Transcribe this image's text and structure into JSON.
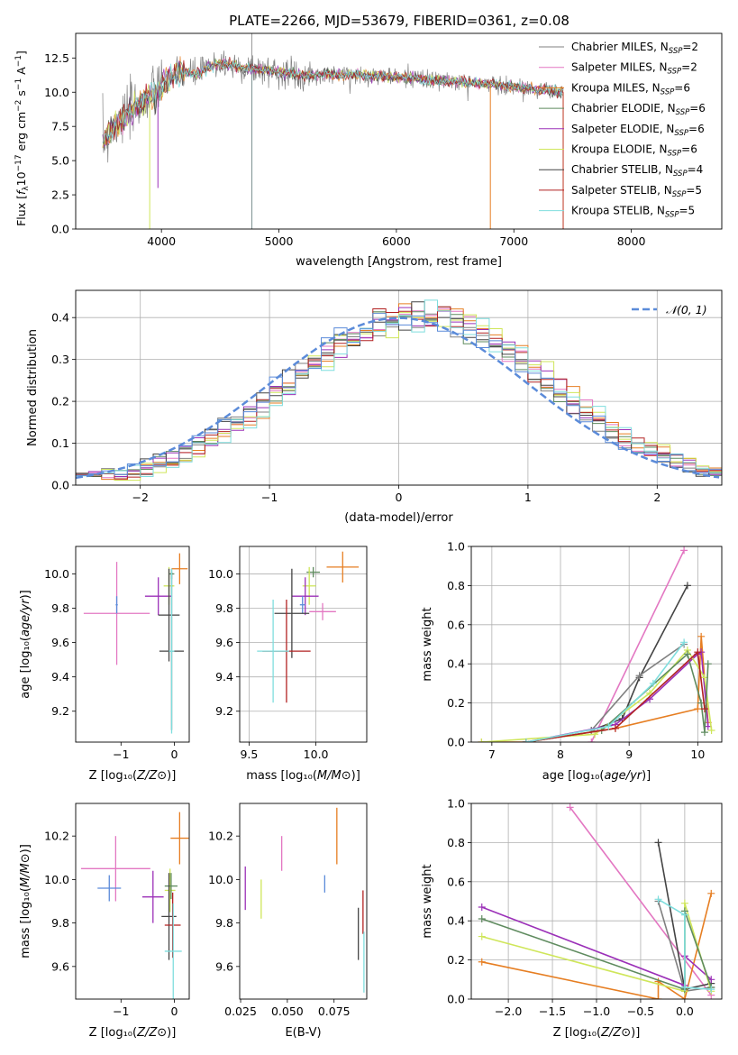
{
  "figure_title": "PLATE=2266, MJD=53679, FIBERID=0361, z=0.08",
  "palette": {
    "c1": "#808080",
    "c2": "#e377c2",
    "c3": "#e67e22",
    "c4": "#5f8b5f",
    "c5": "#9b30b8",
    "c6": "#cfe65a",
    "c7": "#444444",
    "c8": "#b22222",
    "c9": "#7fdede",
    "c10": "#5b8bd9"
  },
  "chart_data": [
    {
      "id": "spectrum",
      "type": "line",
      "title": "PLATE=2266, MJD=53679, FIBERID=0361, z=0.08",
      "xlabel": "wavelength [Angstrom, rest frame]",
      "ylabel": "Flux [fλ 10⁻¹⁷ erg cm⁻² s⁻¹ A⁻¹]",
      "xlim": [
        3270,
        8770
      ],
      "ylim": [
        0,
        14.3
      ],
      "xticks": [
        4000,
        5000,
        6000,
        7000,
        8000
      ],
      "yticks": [
        0.0,
        2.5,
        5.0,
        7.5,
        10.0,
        12.5
      ],
      "legend_position": "right",
      "legend": [
        {
          "main": "Chabrier MILES, N",
          "sub": "SSP",
          "tail": "=2",
          "color": "#808080"
        },
        {
          "main": "Salpeter MILES, N",
          "sub": "SSP",
          "tail": "=2",
          "color": "#e377c2"
        },
        {
          "main": "Kroupa MILES, N",
          "sub": "SSP",
          "tail": "=6",
          "color": "#e67e22"
        },
        {
          "main": "Chabrier ELODIE, N",
          "sub": "SSP",
          "tail": "=6",
          "color": "#5f8b5f"
        },
        {
          "main": "Salpeter ELODIE, N",
          "sub": "SSP",
          "tail": "=6",
          "color": "#9b30b8"
        },
        {
          "main": "Kroupa ELODIE, N",
          "sub": "SSP",
          "tail": "=6",
          "color": "#cfe65a"
        },
        {
          "main": "Chabrier STELIB, N",
          "sub": "SSP",
          "tail": "=4",
          "color": "#444444"
        },
        {
          "main": "Salpeter STELIB, N",
          "sub": "SSP",
          "tail": "=5",
          "color": "#b22222"
        },
        {
          "main": "Kroupa STELIB, N",
          "sub": "SSP",
          "tail": "=5",
          "color": "#7fdede"
        }
      ],
      "continuum": [
        [
          3500,
          6.2
        ],
        [
          3600,
          7.6
        ],
        [
          3700,
          8.3
        ],
        [
          3800,
          9.0
        ],
        [
          3900,
          9.7
        ],
        [
          3950,
          9.9
        ],
        [
          4000,
          10.6
        ],
        [
          4100,
          11.2
        ],
        [
          4200,
          11.5
        ],
        [
          4300,
          11.3
        ],
        [
          4400,
          11.8
        ],
        [
          4500,
          12.1
        ],
        [
          4700,
          11.8
        ],
        [
          4900,
          11.6
        ],
        [
          5000,
          11.5
        ],
        [
          5200,
          11.2
        ],
        [
          5400,
          11.3
        ],
        [
          5600,
          11.3
        ],
        [
          5800,
          11.2
        ],
        [
          6000,
          11.1
        ],
        [
          6200,
          11.0
        ],
        [
          6400,
          10.8
        ],
        [
          6600,
          10.7
        ],
        [
          6800,
          10.6
        ],
        [
          7000,
          10.4
        ],
        [
          7200,
          10.2
        ],
        [
          7420,
          10.0
        ]
      ],
      "models_range": [
        3500,
        7420
      ]
    },
    {
      "id": "residuals",
      "type": "histogram",
      "xlabel": "(data-model)/error",
      "ylabel": "Normed distribution",
      "xlim": [
        -2.5,
        2.5
      ],
      "ylim": [
        0,
        0.465
      ],
      "xticks": [
        -2,
        -1,
        0,
        1,
        2
      ],
      "yticks": [
        0.0,
        0.1,
        0.2,
        0.3,
        0.4
      ],
      "grid": true,
      "legend_position": "top-right",
      "legend_label": "𝒩(0, 1)",
      "gaussian_color": "#5b8bd9",
      "bin_width": 0.1,
      "series_colors": [
        "#808080",
        "#e377c2",
        "#e67e22",
        "#5f8b5f",
        "#9b30b8",
        "#cfe65a",
        "#444444",
        "#b22222",
        "#7fdede",
        "#5b8bd9"
      ]
    },
    {
      "id": "age_vs_Z",
      "type": "errorbar",
      "xlabel": "Z [log₁₀(Z/Z⊙)]",
      "ylabel": "age  [log₁₀(age/yr)]",
      "xlim": [
        -1.85,
        0.28
      ],
      "ylim": [
        9.02,
        10.16
      ],
      "xticks": [
        -1,
        0
      ],
      "yticks": [
        9.2,
        9.4,
        9.6,
        9.8,
        10.0
      ],
      "grid": false,
      "points": [
        {
          "x": -1.08,
          "y": 9.77,
          "xerr": 0.62,
          "yerr": 0.3,
          "color": "#e377c2"
        },
        {
          "x": -1.08,
          "y": 9.82,
          "xerr": 0.02,
          "yerr": 0.05,
          "color": "#5b8bd9"
        },
        {
          "x": 0.1,
          "y": 10.03,
          "xerr": 0.15,
          "yerr": 0.09,
          "color": "#e67e22"
        },
        {
          "x": -0.3,
          "y": 9.87,
          "xerr": 0.25,
          "yerr": 0.11,
          "color": "#9b30b8"
        },
        {
          "x": -0.1,
          "y": 9.93,
          "xerr": 0.1,
          "yerr": 0.11,
          "color": "#cfe65a"
        },
        {
          "x": -0.05,
          "y": 10.0,
          "xerr": 0.05,
          "yerr": 0.03,
          "color": "#5f8b5f"
        },
        {
          "x": -0.1,
          "y": 9.76,
          "xerr": 0.2,
          "yerr": 0.27,
          "color": "#444444"
        },
        {
          "x": -0.05,
          "y": 9.55,
          "xerr": 0.23,
          "yerr": 0.46,
          "color": "#444444"
        },
        {
          "x": -0.05,
          "y": 9.55,
          "xerr": 0.05,
          "yerr": 0.48,
          "color": "#7fdede"
        }
      ]
    },
    {
      "id": "age_vs_mass",
      "type": "errorbar",
      "xlabel": "mass [log₁₀(M/M⊙)]",
      "ylabel": "",
      "xlim": [
        9.43,
        10.38
      ],
      "ylim": [
        9.02,
        10.16
      ],
      "xticks": [
        9.5,
        10.0
      ],
      "yticks": [
        9.2,
        9.4,
        9.6,
        9.8,
        10.0
      ],
      "grid": true,
      "points": [
        {
          "x": 10.2,
          "y": 10.04,
          "xerr": 0.12,
          "yerr": 0.09,
          "color": "#e67e22"
        },
        {
          "x": 9.98,
          "y": 10.01,
          "xerr": 0.05,
          "yerr": 0.03,
          "color": "#5f8b5f"
        },
        {
          "x": 9.95,
          "y": 9.93,
          "xerr": 0.05,
          "yerr": 0.11,
          "color": "#cfe65a"
        },
        {
          "x": 9.92,
          "y": 9.87,
          "xerr": 0.1,
          "yerr": 0.11,
          "color": "#9b30b8"
        },
        {
          "x": 10.05,
          "y": 9.78,
          "xerr": 0.1,
          "yerr": 0.05,
          "color": "#e377c2"
        },
        {
          "x": 9.9,
          "y": 9.82,
          "xerr": 0.02,
          "yerr": 0.05,
          "color": "#5b8bd9"
        },
        {
          "x": 9.82,
          "y": 9.77,
          "xerr": 0.13,
          "yerr": 0.26,
          "color": "#444444"
        },
        {
          "x": 9.78,
          "y": 9.55,
          "xerr": 0.18,
          "yerr": 0.3,
          "color": "#b22222"
        },
        {
          "x": 9.68,
          "y": 9.55,
          "xerr": 0.12,
          "yerr": 0.3,
          "color": "#7fdede"
        }
      ]
    },
    {
      "id": "massweight_vs_age",
      "type": "line",
      "xlabel": "age  [log₁₀(age/yr)]",
      "ylabel": "mass weight",
      "xlim": [
        6.7,
        10.35
      ],
      "ylim": [
        0,
        1.0
      ],
      "xticks": [
        7,
        8,
        9,
        10
      ],
      "yticks": [
        0.0,
        0.2,
        0.4,
        0.6,
        0.8,
        1.0
      ],
      "grid": true,
      "series": [
        {
          "color": "#e377c2",
          "points": [
            [
              8.45,
              0.0
            ],
            [
              9.8,
              0.98
            ]
          ]
        },
        {
          "color": "#444444",
          "points": [
            [
              8.45,
              0.06
            ],
            [
              8.9,
              0.12
            ],
            [
              9.15,
              0.33
            ],
            [
              9.85,
              0.8
            ]
          ]
        },
        {
          "color": "#808080",
          "points": [
            [
              8.45,
              0.06
            ],
            [
              9.15,
              0.34
            ],
            [
              9.8,
              0.5
            ]
          ]
        },
        {
          "color": "#e67e22",
          "points": [
            [
              6.85,
              0.0
            ],
            [
              7.5,
              0.0
            ],
            [
              8.8,
              0.07
            ],
            [
              10.0,
              0.17
            ],
            [
              10.05,
              0.54
            ],
            [
              10.15,
              0.1
            ]
          ]
        },
        {
          "color": "#9b30b8",
          "points": [
            [
              7.5,
              0.0
            ],
            [
              8.8,
              0.09
            ],
            [
              9.3,
              0.22
            ],
            [
              10.0,
              0.45
            ],
            [
              10.05,
              0.46
            ],
            [
              10.15,
              0.08
            ]
          ]
        },
        {
          "color": "#cfe65a",
          "points": [
            [
              6.85,
              0.0
            ],
            [
              8.5,
              0.04
            ],
            [
              9.3,
              0.25
            ],
            [
              9.85,
              0.47
            ],
            [
              10.1,
              0.33
            ],
            [
              10.2,
              0.06
            ]
          ]
        },
        {
          "color": "#5f8b5f",
          "points": [
            [
              7.5,
              0.0
            ],
            [
              8.6,
              0.06
            ],
            [
              9.85,
              0.45
            ],
            [
              10.05,
              0.2
            ],
            [
              10.1,
              0.05
            ],
            [
              10.15,
              0.4
            ]
          ]
        },
        {
          "color": "#b22222",
          "points": [
            [
              7.5,
              0.0
            ],
            [
              8.8,
              0.07
            ],
            [
              10.0,
              0.46
            ],
            [
              10.1,
              0.17
            ]
          ]
        },
        {
          "color": "#7fdede",
          "points": [
            [
              7.5,
              0.0
            ],
            [
              8.7,
              0.08
            ],
            [
              9.35,
              0.3
            ],
            [
              9.8,
              0.51
            ]
          ]
        }
      ]
    },
    {
      "id": "mass_vs_Z",
      "type": "errorbar",
      "xlabel": "Z [log₁₀(Z/Z⊙)]",
      "ylabel": "mass [log₁₀(M/M⊙)]",
      "xlim": [
        -1.85,
        0.28
      ],
      "ylim": [
        9.45,
        10.35
      ],
      "xticks": [
        -1,
        0
      ],
      "yticks": [
        9.6,
        9.8,
        10.0,
        10.2
      ],
      "grid": false,
      "points": [
        {
          "x": -1.1,
          "y": 10.05,
          "xerr": 0.65,
          "yerr": 0.15,
          "color": "#e377c2"
        },
        {
          "x": -1.22,
          "y": 9.96,
          "xerr": 0.22,
          "yerr": 0.06,
          "color": "#5b8bd9"
        },
        {
          "x": 0.1,
          "y": 10.19,
          "xerr": 0.17,
          "yerr": 0.12,
          "color": "#e67e22"
        },
        {
          "x": -0.4,
          "y": 9.92,
          "xerr": 0.2,
          "yerr": 0.12,
          "color": "#9b30b8"
        },
        {
          "x": -0.08,
          "y": 9.95,
          "xerr": 0.1,
          "yerr": 0.1,
          "color": "#cfe65a"
        },
        {
          "x": -0.06,
          "y": 9.97,
          "xerr": 0.12,
          "yerr": 0.06,
          "color": "#5f8b5f"
        },
        {
          "x": -0.1,
          "y": 9.83,
          "xerr": 0.14,
          "yerr": 0.2,
          "color": "#444444"
        },
        {
          "x": -0.03,
          "y": 9.79,
          "xerr": 0.15,
          "yerr": 0.15,
          "color": "#b22222"
        },
        {
          "x": -0.02,
          "y": 9.67,
          "xerr": 0.16,
          "yerr": 0.22,
          "color": "#7fdede"
        }
      ]
    },
    {
      "id": "mass_vs_ebv",
      "type": "errorbar",
      "xlabel": "E(B-V)",
      "ylabel": "",
      "xlim": [
        0.0245,
        0.0925
      ],
      "ylim": [
        9.45,
        10.35
      ],
      "xticks": [
        0.025,
        0.05,
        0.075
      ],
      "xticklabels": [
        "0.025",
        "0.050",
        "0.075"
      ],
      "yticks": [
        9.6,
        9.8,
        10.0,
        10.2
      ],
      "grid": false,
      "points": [
        {
          "x": 0.0275,
          "y": 9.96,
          "xerr": 0.0,
          "yerr": 0.1,
          "color": "#9b30b8"
        },
        {
          "x": 0.036,
          "y": 9.91,
          "xerr": 0.0,
          "yerr": 0.09,
          "color": "#cfe65a"
        },
        {
          "x": 0.047,
          "y": 10.12,
          "xerr": 0.0,
          "yerr": 0.08,
          "color": "#e377c2"
        },
        {
          "x": 0.07,
          "y": 9.98,
          "xerr": 0.0,
          "yerr": 0.04,
          "color": "#5b8bd9"
        },
        {
          "x": 0.0765,
          "y": 10.2,
          "xerr": 0.0,
          "yerr": 0.13,
          "color": "#e67e22"
        },
        {
          "x": 0.088,
          "y": 9.75,
          "xerr": 0.0,
          "yerr": 0.12,
          "color": "#444444"
        },
        {
          "x": 0.0905,
          "y": 9.85,
          "xerr": 0.0,
          "yerr": 0.1,
          "color": "#b22222"
        },
        {
          "x": 0.091,
          "y": 9.62,
          "xerr": 0.0,
          "yerr": 0.14,
          "color": "#7fdede"
        }
      ]
    },
    {
      "id": "massweight_vs_Z",
      "type": "line",
      "xlabel": "Z [log₁₀(Z/Z⊙)]",
      "ylabel": "mass weight",
      "xlim": [
        -2.42,
        0.42
      ],
      "ylim": [
        0,
        1.0
      ],
      "xticks": [
        -2.0,
        -1.5,
        -1.0,
        -0.5,
        0.0
      ],
      "yticks": [
        0.0,
        0.2,
        0.4,
        0.6,
        0.8,
        1.0
      ],
      "grid": true,
      "series": [
        {
          "color": "#e377c2",
          "points": [
            [
              -1.3,
              0.98
            ],
            [
              0.3,
              0.02
            ]
          ]
        },
        {
          "color": "#444444",
          "points": [
            [
              -0.3,
              0.8
            ],
            [
              0.0,
              0.05
            ],
            [
              0.3,
              0.08
            ]
          ]
        },
        {
          "color": "#808080",
          "points": [
            [
              -0.3,
              0.5
            ],
            [
              0.0,
              0.04
            ],
            [
              0.3,
              0.06
            ]
          ]
        },
        {
          "color": "#e67e22",
          "points": [
            [
              -2.3,
              0.19
            ],
            [
              -0.3,
              0.0
            ],
            [
              -0.3,
              0.09
            ],
            [
              0.0,
              0.0
            ],
            [
              0.3,
              0.54
            ]
          ]
        },
        {
          "color": "#9b30b8",
          "points": [
            [
              -2.3,
              0.47
            ],
            [
              0.0,
              0.07
            ],
            [
              0.0,
              0.22
            ],
            [
              0.3,
              0.1
            ]
          ]
        },
        {
          "color": "#cfe65a",
          "points": [
            [
              -2.3,
              0.32
            ],
            [
              0.0,
              0.04
            ],
            [
              0.0,
              0.49
            ],
            [
              0.3,
              0.04
            ]
          ]
        },
        {
          "color": "#5f8b5f",
          "points": [
            [
              -2.3,
              0.41
            ],
            [
              0.0,
              0.05
            ],
            [
              0.0,
              0.45
            ],
            [
              0.3,
              0.06
            ]
          ]
        },
        {
          "color": "#7fdede",
          "points": [
            [
              -0.3,
              0.51
            ],
            [
              0.0,
              0.43
            ],
            [
              0.0,
              0.06
            ],
            [
              0.3,
              0.05
            ]
          ]
        }
      ]
    }
  ]
}
